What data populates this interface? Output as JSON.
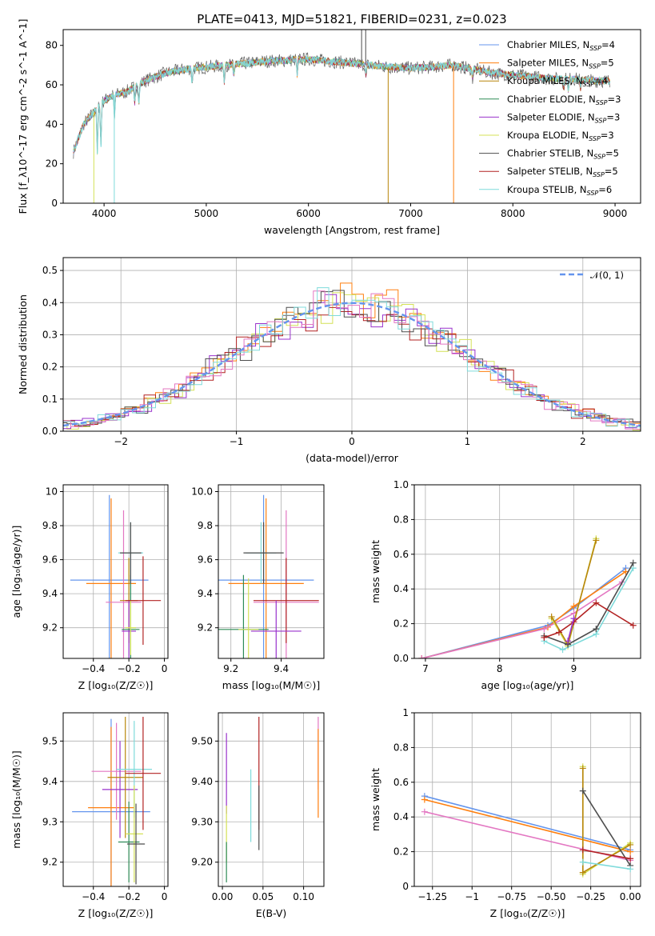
{
  "figure_title": "PLATE=0413, MJD=51821, FIBERID=0231, z=0.023",
  "chart_data": [
    {
      "id": "spectrum",
      "type": "line",
      "xlabel": "wavelength [Angstrom, rest frame]",
      "ylabel": "Flux [f_λ10^-17 erg cm^-2 s^-1 A^-1]",
      "xlim": [
        3600,
        9250
      ],
      "ylim": [
        0,
        88
      ],
      "xticks": [
        4000,
        5000,
        6000,
        7000,
        8000,
        9000
      ],
      "yticks": [
        0,
        20,
        40,
        60,
        80
      ],
      "grid": false,
      "legend_position": "top-right",
      "continuum": [
        [
          3700,
          26
        ],
        [
          3800,
          40
        ],
        [
          3900,
          46
        ],
        [
          4000,
          52
        ],
        [
          4100,
          55
        ],
        [
          4200,
          56
        ],
        [
          4400,
          62
        ],
        [
          4600,
          66
        ],
        [
          4800,
          68
        ],
        [
          5000,
          69
        ],
        [
          5200,
          70
        ],
        [
          5400,
          71
        ],
        [
          5600,
          72
        ],
        [
          5800,
          72.5
        ],
        [
          6000,
          73
        ],
        [
          6200,
          72
        ],
        [
          6400,
          71
        ],
        [
          6600,
          70
        ],
        [
          6800,
          69
        ],
        [
          7000,
          68.5
        ],
        [
          7200,
          69
        ],
        [
          7400,
          70
        ],
        [
          7600,
          68
        ],
        [
          7800,
          66
        ],
        [
          8000,
          65
        ],
        [
          8200,
          64
        ],
        [
          8400,
          63
        ],
        [
          8600,
          63
        ],
        [
          8800,
          62
        ],
        [
          8950,
          62
        ]
      ],
      "absorption_features": [
        [
          3934,
          22
        ],
        [
          3969,
          22
        ],
        [
          4102,
          12
        ],
        [
          4300,
          8
        ],
        [
          4340,
          10
        ],
        [
          4861,
          8
        ],
        [
          5175,
          9
        ],
        [
          5270,
          6
        ],
        [
          5890,
          8
        ],
        [
          6563,
          6
        ],
        [
          7605,
          5
        ],
        [
          8498,
          5
        ],
        [
          8542,
          6
        ],
        [
          8662,
          5
        ]
      ],
      "series": [
        {
          "name": "Chabrier MILES",
          "nssp": "4",
          "color": "#6495ed"
        },
        {
          "name": "Salpeter MILES",
          "nssp": "5",
          "color": "#ff7f0e"
        },
        {
          "name": "Kroupa MILES",
          "nssp": "4",
          "color": "#b8860b"
        },
        {
          "name": "Chabrier ELODIE",
          "nssp": "3",
          "color": "#2e8b57"
        },
        {
          "name": "Salpeter ELODIE",
          "nssp": "3",
          "color": "#9932cc"
        },
        {
          "name": "Kroupa ELODIE",
          "nssp": "3",
          "color": "#d4e157"
        },
        {
          "name": "Chabrier STELIB",
          "nssp": "5",
          "color": "#4d4d4d"
        },
        {
          "name": "Salpeter STELIB",
          "nssp": "5",
          "color": "#b22222"
        },
        {
          "name": "Kroupa STELIB",
          "nssp": "6",
          "color": "#7fdbdb"
        }
      ]
    },
    {
      "id": "residuals",
      "type": "line",
      "xlabel": "(data-model)/error",
      "ylabel": "Normed distribution",
      "xlim": [
        -2.5,
        2.5
      ],
      "ylim": [
        0,
        0.54
      ],
      "xticks": [
        -2,
        -1,
        0,
        1,
        2
      ],
      "yticks": [
        0.0,
        0.1,
        0.2,
        0.3,
        0.4,
        0.5
      ],
      "grid": true,
      "legend_position": "top-right",
      "legend_label": "𝒩(0, 1)",
      "hist_colors": [
        "#ff7f0e",
        "#d4e157",
        "#9932cc",
        "#b22222",
        "#4d4d4d",
        "#e377c2",
        "#7fdbdb"
      ]
    },
    {
      "id": "age-vs-Z",
      "type": "scatter",
      "xlabel": "Z [log₁₀(Z/Z☉)]",
      "ylabel": "age  [log₁₀(age/yr)]",
      "xlim": [
        -0.57,
        0.02
      ],
      "ylim": [
        9.02,
        10.04
      ],
      "xticks": [
        -0.4,
        -0.2,
        0.0
      ],
      "yticks": [
        9.2,
        9.4,
        9.6,
        9.8,
        10.0
      ],
      "grid": true,
      "crosses": [
        {
          "x": -0.31,
          "y": 9.48,
          "xerr": 0.22,
          "yerr": 0.5,
          "color": "#6495ed"
        },
        {
          "x": -0.3,
          "y": 9.46,
          "xerr": 0.14,
          "yerr": 0.5,
          "color": "#ff7f0e"
        },
        {
          "x": -0.23,
          "y": 9.35,
          "xerr": 0.1,
          "yerr": 0.54,
          "color": "#e377c2"
        },
        {
          "x": -0.2,
          "y": 9.36,
          "xerr": 0.05,
          "yerr": 0.25,
          "color": "#b8860b"
        },
        {
          "x": -0.2,
          "y": 9.18,
          "xerr": 0.04,
          "yerr": 0.18,
          "color": "#9932cc"
        },
        {
          "x": -0.19,
          "y": 9.19,
          "xerr": 0.05,
          "yerr": 0.32,
          "color": "#2e8b57"
        },
        {
          "x": -0.19,
          "y": 9.64,
          "xerr": 0.07,
          "yerr": 0.18,
          "color": "#7fdbdb"
        },
        {
          "x": -0.19,
          "y": 9.64,
          "xerr": 0.06,
          "yerr": 0.18,
          "color": "#4d4d4d"
        },
        {
          "x": -0.19,
          "y": 9.2,
          "xerr": 0.03,
          "yerr": 0.16,
          "color": "#d4e157"
        },
        {
          "x": -0.12,
          "y": 9.36,
          "xerr": 0.1,
          "yerr": 0.26,
          "color": "#b22222"
        }
      ]
    },
    {
      "id": "age-vs-mass",
      "type": "scatter",
      "xlabel": "mass [log₁₀(M/M☉)]",
      "ylabel": "",
      "xlim": [
        9.15,
        9.57
      ],
      "ylim": [
        9.02,
        10.04
      ],
      "xticks": [
        9.2,
        9.4
      ],
      "yticks": [
        9.2,
        9.4,
        9.6,
        9.8,
        10.0
      ],
      "grid": true,
      "crosses": [
        {
          "x": 9.33,
          "y": 9.48,
          "xerr": 0.2,
          "yerr": 0.5,
          "color": "#6495ed"
        },
        {
          "x": 9.34,
          "y": 9.46,
          "xerr": 0.15,
          "yerr": 0.5,
          "color": "#ff7f0e"
        },
        {
          "x": 9.42,
          "y": 9.35,
          "xerr": 0.13,
          "yerr": 0.54,
          "color": "#e377c2"
        },
        {
          "x": 9.42,
          "y": 9.36,
          "xerr": 0.13,
          "yerr": 0.25,
          "color": "#b22222"
        },
        {
          "x": 9.38,
          "y": 9.18,
          "xerr": 0.1,
          "yerr": 0.18,
          "color": "#9932cc"
        },
        {
          "x": 9.25,
          "y": 9.19,
          "xerr": 0.1,
          "yerr": 0.32,
          "color": "#2e8b57"
        },
        {
          "x": 9.32,
          "y": 9.64,
          "xerr": 0.06,
          "yerr": 0.18,
          "color": "#7fdbdb"
        },
        {
          "x": 9.33,
          "y": 9.64,
          "xerr": 0.08,
          "yerr": 0.18,
          "color": "#4d4d4d"
        },
        {
          "x": 9.27,
          "y": 9.19,
          "xerr": 0.04,
          "yerr": 0.3,
          "color": "#d4e157"
        }
      ]
    },
    {
      "id": "weight-vs-age",
      "type": "line",
      "xlabel": "age  [log₁₀(age/yr)]",
      "ylabel": "mass weight",
      "xlim": [
        6.85,
        9.9
      ],
      "ylim": [
        0,
        1.0
      ],
      "xticks": [
        7,
        8,
        9
      ],
      "yticks": [
        0.0,
        0.2,
        0.4,
        0.6,
        0.8,
        1.0
      ],
      "grid": true,
      "series": [
        {
          "color": "#6495ed",
          "points": [
            [
              6.95,
              0.0
            ],
            [
              8.65,
              0.19
            ],
            [
              9.0,
              0.29
            ],
            [
              9.7,
              0.52
            ]
          ]
        },
        {
          "color": "#ff7f0e",
          "points": [
            [
              6.95,
              0.0
            ],
            [
              8.65,
              0.18
            ],
            [
              9.0,
              0.3
            ],
            [
              9.7,
              0.5
            ]
          ]
        },
        {
          "color": "#e377c2",
          "points": [
            [
              6.95,
              0.0
            ],
            [
              8.6,
              0.17
            ],
            [
              9.0,
              0.26
            ],
            [
              9.65,
              0.44
            ]
          ]
        },
        {
          "color": "#d4e157",
          "points": [
            [
              8.7,
              0.23
            ],
            [
              8.92,
              0.07
            ],
            [
              9.3,
              0.69
            ]
          ]
        },
        {
          "color": "#b8860b",
          "points": [
            [
              8.7,
              0.24
            ],
            [
              8.92,
              0.08
            ],
            [
              9.3,
              0.68
            ]
          ]
        },
        {
          "color": "#7fdbdb",
          "points": [
            [
              8.6,
              0.1
            ],
            [
              8.85,
              0.05
            ],
            [
              9.3,
              0.14
            ],
            [
              9.8,
              0.52
            ]
          ]
        },
        {
          "color": "#4d4d4d",
          "points": [
            [
              8.6,
              0.13
            ],
            [
              8.92,
              0.08
            ],
            [
              9.3,
              0.17
            ],
            [
              9.8,
              0.55
            ]
          ]
        },
        {
          "color": "#b22222",
          "points": [
            [
              8.6,
              0.12
            ],
            [
              8.8,
              0.15
            ],
            [
              9.0,
              0.21
            ],
            [
              9.3,
              0.32
            ],
            [
              9.8,
              0.19
            ]
          ]
        },
        {
          "color": "#9932cc",
          "points": [
            [
              8.92,
              0.1
            ],
            [
              9.0,
              0.23
            ]
          ]
        }
      ]
    },
    {
      "id": "mass-vs-Z",
      "type": "scatter",
      "xlabel": "Z [log₁₀(Z/Z☉)]",
      "ylabel": "mass [log₁₀(M/M☉)]",
      "xlim": [
        -0.57,
        0.02
      ],
      "ylim": [
        9.14,
        9.57
      ],
      "xticks": [
        -0.4,
        -0.2,
        0.0
      ],
      "yticks": [
        9.2,
        9.3,
        9.4,
        9.5
      ],
      "grid": true,
      "crosses": [
        {
          "x": -0.3,
          "y": 9.325,
          "xerr": 0.22,
          "yerr": 0.23,
          "color": "#6495ed"
        },
        {
          "x": -0.3,
          "y": 9.335,
          "xerr": 0.13,
          "yerr": 0.2,
          "color": "#ff7f0e"
        },
        {
          "x": -0.27,
          "y": 9.425,
          "xerr": 0.14,
          "yerr": 0.12,
          "color": "#e377c2"
        },
        {
          "x": -0.25,
          "y": 9.38,
          "xerr": 0.1,
          "yerr": 0.12,
          "color": "#9932cc"
        },
        {
          "x": -0.22,
          "y": 9.41,
          "xerr": 0.1,
          "yerr": 0.15,
          "color": "#b8860b"
        },
        {
          "x": -0.2,
          "y": 9.25,
          "xerr": 0.06,
          "yerr": 0.1,
          "color": "#2e8b57"
        },
        {
          "x": -0.17,
          "y": 9.43,
          "xerr": 0.1,
          "yerr": 0.12,
          "color": "#7fdbdb"
        },
        {
          "x": -0.17,
          "y": 9.27,
          "xerr": 0.05,
          "yerr": 0.12,
          "color": "#d4e157"
        },
        {
          "x": -0.16,
          "y": 9.245,
          "xerr": 0.05,
          "yerr": 0.1,
          "color": "#4d4d4d"
        },
        {
          "x": -0.12,
          "y": 9.42,
          "xerr": 0.1,
          "yerr": 0.14,
          "color": "#b22222"
        }
      ]
    },
    {
      "id": "mass-vs-ebv",
      "type": "scatter",
      "xlabel": "E(B-V)",
      "ylabel": "",
      "xlim": [
        -0.005,
        0.125
      ],
      "ylim": [
        9.14,
        9.57
      ],
      "xticks": [
        0.0,
        0.05,
        0.1
      ],
      "yticks": [
        9.2,
        9.3,
        9.4,
        9.5
      ],
      "grid": true,
      "crosses": [
        {
          "x": 0.005,
          "y": 9.42,
          "xerr": 0,
          "yerr": 0.1,
          "color": "#9932cc"
        },
        {
          "x": 0.005,
          "y": 9.27,
          "xerr": 0,
          "yerr": 0.07,
          "color": "#d4e157"
        },
        {
          "x": 0.005,
          "y": 9.2,
          "xerr": 0,
          "yerr": 0.05,
          "color": "#2e8b57"
        },
        {
          "x": 0.035,
          "y": 9.34,
          "xerr": 0,
          "yerr": 0.09,
          "color": "#7fdbdb"
        },
        {
          "x": 0.045,
          "y": 9.42,
          "xerr": 0,
          "yerr": 0.14,
          "color": "#b22222"
        },
        {
          "x": 0.045,
          "y": 9.31,
          "xerr": 0,
          "yerr": 0.08,
          "color": "#4d4d4d"
        },
        {
          "x": 0.118,
          "y": 9.47,
          "xerr": 0,
          "yerr": 0.09,
          "color": "#e377c2"
        },
        {
          "x": 0.118,
          "y": 9.42,
          "xerr": 0,
          "yerr": 0.11,
          "color": "#ff7f0e"
        }
      ]
    },
    {
      "id": "weight-vs-Z",
      "type": "line",
      "xlabel": "Z [log₁₀(Z/Z☉)]",
      "ylabel": "mass weight",
      "xlim": [
        -1.365,
        0.065
      ],
      "ylim": [
        0,
        1.0
      ],
      "xticks": [
        -1.25,
        -1.0,
        -0.75,
        -0.5,
        -0.25,
        0.0
      ],
      "yticks": [
        0.0,
        0.2,
        0.4,
        0.6,
        0.8,
        1.0
      ],
      "grid": true,
      "series": [
        {
          "color": "#6495ed",
          "points": [
            [
              -1.3,
              0.52
            ],
            [
              0.0,
              0.21
            ]
          ]
        },
        {
          "color": "#ff7f0e",
          "points": [
            [
              -1.3,
              0.5
            ],
            [
              0.0,
              0.2
            ]
          ]
        },
        {
          "color": "#e377c2",
          "points": [
            [
              -1.3,
              0.43
            ],
            [
              0.0,
              0.15
            ]
          ]
        },
        {
          "color": "#d4e157",
          "points": [
            [
              -0.3,
              0.69
            ],
            [
              -0.3,
              0.07
            ],
            [
              0.0,
              0.25
            ]
          ]
        },
        {
          "color": "#b8860b",
          "points": [
            [
              -0.3,
              0.68
            ],
            [
              -0.3,
              0.08
            ],
            [
              0.0,
              0.24
            ]
          ]
        },
        {
          "color": "#4d4d4d",
          "points": [
            [
              -0.3,
              0.55
            ],
            [
              0.0,
              0.12
            ]
          ]
        },
        {
          "color": "#7fdbdb",
          "points": [
            [
              -0.3,
              0.14
            ],
            [
              0.0,
              0.1
            ]
          ]
        },
        {
          "color": "#b22222",
          "points": [
            [
              -0.3,
              0.21
            ],
            [
              0.0,
              0.16
            ]
          ]
        }
      ]
    }
  ]
}
